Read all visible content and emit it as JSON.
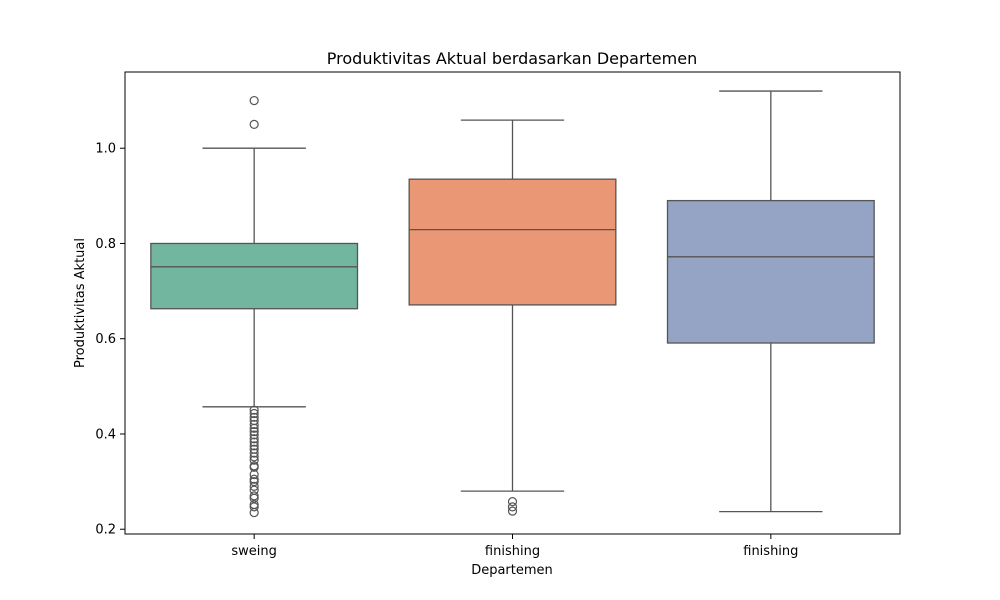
{
  "chart_data": {
    "type": "box",
    "title": "Produktivitas Aktual berdasarkan Departemen",
    "xlabel": "Departemen",
    "ylabel": "Produktivitas Aktual",
    "ylim": [
      0.19,
      1.16
    ],
    "yticks": [
      0.2,
      0.4,
      0.6,
      0.8,
      1.0
    ],
    "ytick_labels": [
      "0.2",
      "0.4",
      "0.6",
      "0.8",
      "1.0"
    ],
    "grid": false,
    "legend": "none",
    "categories": [
      "sweing",
      "finishing",
      "finishing"
    ],
    "boxes": [
      {
        "label": "sweing",
        "color": "#73b69f",
        "whisker_low": 0.457,
        "q1": 0.663,
        "median": 0.751,
        "q3": 0.8,
        "whisker_high": 1.0,
        "outliers": [
          1.1,
          1.05,
          0.45,
          0.443,
          0.435,
          0.428,
          0.42,
          0.412,
          0.405,
          0.398,
          0.39,
          0.383,
          0.375,
          0.368,
          0.36,
          0.352,
          0.345,
          0.333,
          0.33,
          0.315,
          0.305,
          0.3,
          0.29,
          0.282,
          0.27,
          0.265,
          0.252,
          0.247,
          0.235
        ]
      },
      {
        "label": "finishing",
        "color": "#e99775",
        "whisker_low": 0.28,
        "q1": 0.671,
        "median": 0.829,
        "q3": 0.935,
        "whisker_high": 1.059,
        "outliers": [
          0.258,
          0.247,
          0.238
        ]
      },
      {
        "label": "finishing",
        "color": "#95a3c4",
        "whisker_low": 0.237,
        "q1": 0.591,
        "median": 0.772,
        "q3": 0.89,
        "whisker_high": 1.12,
        "outliers": []
      }
    ],
    "line_color": "#555555"
  }
}
